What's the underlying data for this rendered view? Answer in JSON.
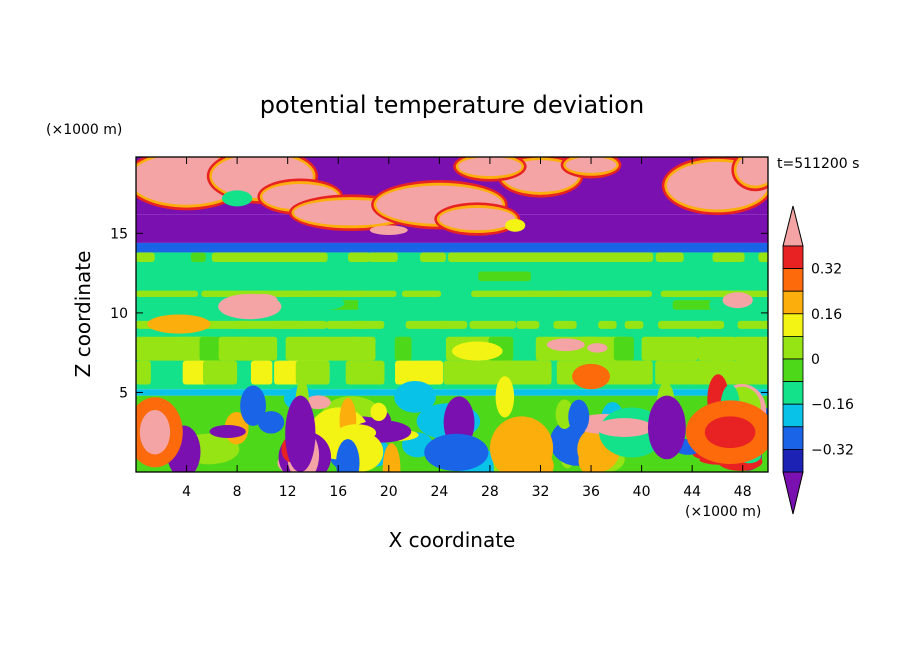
{
  "chart_data": {
    "type": "heatmap",
    "title": "potential temperature deviation",
    "time_label": "t=511200 s",
    "xlabel": "X coordinate",
    "ylabel": "Z coordinate",
    "x_unit": "(×1000 m)",
    "y_unit": "(×1000 m)",
    "xlim": [
      0,
      50
    ],
    "ylim": [
      0,
      19.8
    ],
    "x_ticks": [
      4,
      8,
      12,
      16,
      20,
      24,
      28,
      32,
      36,
      40,
      44,
      48
    ],
    "y_ticks": [
      5,
      10,
      15
    ],
    "colorbar": {
      "levels": [
        -0.4,
        -0.32,
        -0.24,
        -0.16,
        -0.08,
        0,
        0.08,
        0.16,
        0.24,
        0.32,
        0.4
      ],
      "tick_labels": [
        "0.32",
        "0.16",
        "0",
        "−0.16",
        "−0.32"
      ],
      "tick_values": [
        0.32,
        0.16,
        0,
        -0.16,
        -0.32
      ],
      "colors": [
        "#7a10b0",
        "#1c22b4",
        "#1a64e8",
        "#08c2e8",
        "#14e28a",
        "#4ed81a",
        "#96e414",
        "#f4f414",
        "#fcae0c",
        "#fc6a0c",
        "#e82222",
        "#f4a4a4"
      ]
    },
    "layers": [
      {
        "z": [
          16.2,
          19.8
        ],
        "description": "strong mixed field"
      },
      {
        "z": [
          14.4,
          16.2
        ],
        "value": -0.36
      },
      {
        "z": [
          13.8,
          14.4
        ],
        "value": -0.2
      },
      {
        "z": [
          5.2,
          13.8
        ],
        "value": 0.0
      },
      {
        "z": [
          4.8,
          5.2
        ],
        "value": -0.12
      },
      {
        "z": [
          0,
          4.8
        ],
        "description": "convective turbulent field"
      }
    ]
  }
}
